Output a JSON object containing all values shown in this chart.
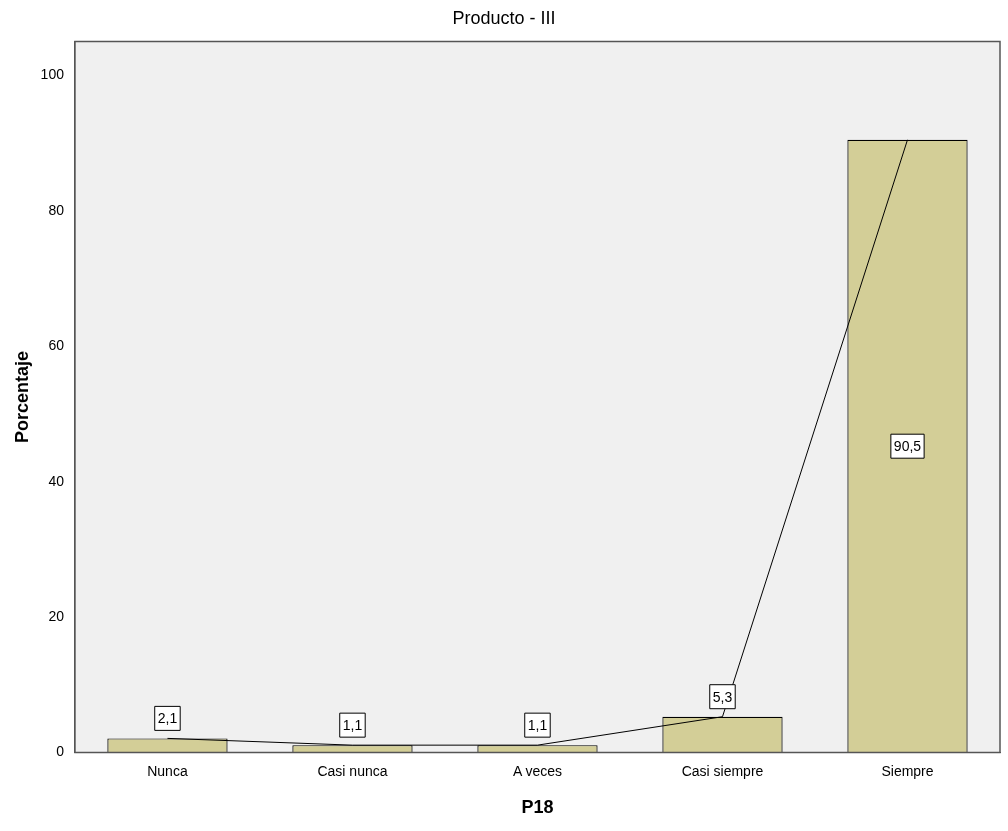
{
  "chart_data": {
    "type": "bar",
    "title": "Producto - III",
    "xlabel": "P18",
    "ylabel": "Porcentaje",
    "categories": [
      "Nunca",
      "Casi nunca",
      "A veces",
      "Casi siempre",
      "Siempre"
    ],
    "series": [
      {
        "color": "#d3ce97",
        "values": [
          2.1,
          1.1,
          1.1,
          5.3,
          90.5
        ],
        "value_labels": [
          "2,1",
          "1,1",
          "1,1",
          "5,3",
          "90,5"
        ]
      },
      {
        "type": "line",
        "color": "#000000",
        "values": [
          2.1,
          1.1,
          1.1,
          5.3,
          90.5
        ]
      }
    ],
    "ylim": [
      0,
      105
    ],
    "yticks": [
      0,
      20,
      40,
      60,
      80,
      100
    ],
    "grid": false,
    "legend": false,
    "marker": "none"
  }
}
